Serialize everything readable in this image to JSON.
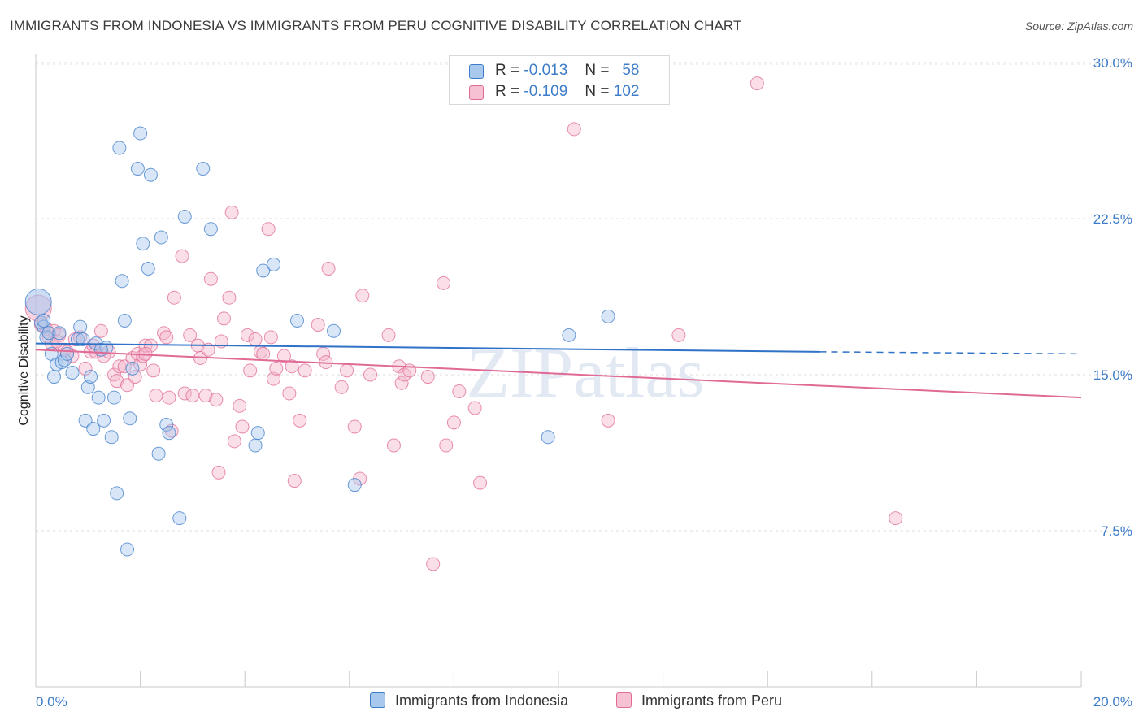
{
  "header": {
    "title": "IMMIGRANTS FROM INDONESIA VS IMMIGRANTS FROM PERU COGNITIVE DISABILITY CORRELATION CHART",
    "source": "Source: ZipAtlas.com"
  },
  "watermark": "ZIPatlas",
  "legend_top": {
    "rows": [
      {
        "r_label": "R =",
        "r_value": "-0.013",
        "n_label": "N =",
        "n_value": "58",
        "color": "#3d7cc9"
      },
      {
        "r_label": "R =",
        "r_value": "-0.109",
        "n_label": "N =",
        "n_value": "102",
        "color": "#e06a95"
      }
    ]
  },
  "legend_bottom": {
    "items": [
      {
        "label": "Immigrants from Indonesia"
      },
      {
        "label": "Immigrants from Peru"
      }
    ]
  },
  "chart_data": {
    "type": "scatter",
    "title": "IMMIGRANTS FROM INDONESIA VS IMMIGRANTS FROM PERU COGNITIVE DISABILITY CORRELATION CHART",
    "xlabel": "",
    "ylabel": "Cognitive Disability",
    "xlim": [
      0,
      20
    ],
    "ylim": [
      0,
      31
    ],
    "x_tick_labels": [
      {
        "value": 0,
        "label": "0.0%"
      },
      {
        "value": 20,
        "label": "20.0%"
      }
    ],
    "y_tick_labels": [
      {
        "value": 7.5,
        "label": "7.5%"
      },
      {
        "value": 15,
        "label": "15.0%"
      },
      {
        "value": 22.5,
        "label": "22.5%"
      },
      {
        "value": 30,
        "label": "30.0%"
      }
    ],
    "grid": "horizontal dashed",
    "legend_position": "bottom",
    "series": [
      {
        "name": "Immigrants from Indonesia",
        "color": "#3d7cc9",
        "fill": "#a9c8ee",
        "trend": {
          "x_start": 0,
          "y_start": 16.5,
          "x_end": 15,
          "y_end": 16.1,
          "x_dash_end": 20,
          "y_dash_end": 16.0
        },
        "points": [
          [
            0.05,
            18.5
          ],
          [
            0.1,
            17.5
          ],
          [
            0.15,
            17.3
          ],
          [
            0.2,
            16.8
          ],
          [
            0.25,
            17.0
          ],
          [
            0.3,
            16.0
          ],
          [
            0.35,
            14.9
          ],
          [
            0.4,
            15.5
          ],
          [
            0.45,
            17.0
          ],
          [
            0.5,
            15.6
          ],
          [
            0.55,
            15.7
          ],
          [
            0.7,
            15.1
          ],
          [
            0.8,
            16.7
          ],
          [
            0.85,
            17.3
          ],
          [
            0.9,
            16.7
          ],
          [
            0.95,
            12.8
          ],
          [
            1.0,
            14.4
          ],
          [
            1.05,
            14.9
          ],
          [
            1.1,
            12.4
          ],
          [
            1.15,
            16.5
          ],
          [
            1.2,
            13.9
          ],
          [
            1.3,
            12.8
          ],
          [
            1.35,
            16.3
          ],
          [
            1.45,
            12.0
          ],
          [
            1.5,
            13.9
          ],
          [
            1.55,
            9.3
          ],
          [
            1.6,
            25.9
          ],
          [
            1.65,
            19.5
          ],
          [
            1.7,
            17.6
          ],
          [
            1.75,
            6.6
          ],
          [
            1.8,
            12.9
          ],
          [
            1.85,
            15.3
          ],
          [
            1.95,
            24.9
          ],
          [
            2.0,
            26.6
          ],
          [
            2.05,
            21.3
          ],
          [
            2.15,
            20.1
          ],
          [
            2.2,
            24.6
          ],
          [
            2.35,
            11.2
          ],
          [
            2.4,
            21.6
          ],
          [
            2.5,
            12.6
          ],
          [
            2.55,
            12.2
          ],
          [
            2.75,
            8.1
          ],
          [
            2.85,
            22.6
          ],
          [
            3.2,
            24.9
          ],
          [
            3.35,
            22.0
          ],
          [
            4.2,
            11.6
          ],
          [
            4.25,
            12.2
          ],
          [
            4.35,
            20.0
          ],
          [
            4.55,
            20.3
          ],
          [
            5.0,
            17.6
          ],
          [
            5.7,
            17.1
          ],
          [
            6.1,
            9.7
          ],
          [
            9.8,
            12.0
          ],
          [
            10.2,
            16.9
          ],
          [
            10.95,
            17.8
          ],
          [
            0.6,
            16.0
          ],
          [
            1.25,
            16.2
          ],
          [
            0.15,
            17.6
          ]
        ]
      },
      {
        "name": "Immigrants from Peru",
        "color": "#e06a95",
        "fill": "#f5b7cb",
        "trend": {
          "x_start": 0,
          "y_start": 16.2,
          "x_end": 20,
          "y_end": 13.9
        },
        "points": [
          [
            0.05,
            18.2
          ],
          [
            0.1,
            17.4
          ],
          [
            0.2,
            17.2
          ],
          [
            0.25,
            16.8
          ],
          [
            0.3,
            16.5
          ],
          [
            0.35,
            17.1
          ],
          [
            0.45,
            16.9
          ],
          [
            0.55,
            16.2
          ],
          [
            0.6,
            16.1
          ],
          [
            0.7,
            15.9
          ],
          [
            0.75,
            16.7
          ],
          [
            0.85,
            16.8
          ],
          [
            0.95,
            15.3
          ],
          [
            1.05,
            16.1
          ],
          [
            1.15,
            16.1
          ],
          [
            1.25,
            17.1
          ],
          [
            1.3,
            15.9
          ],
          [
            1.4,
            16.1
          ],
          [
            1.5,
            15.0
          ],
          [
            1.55,
            14.7
          ],
          [
            1.6,
            15.4
          ],
          [
            1.7,
            15.4
          ],
          [
            1.75,
            14.5
          ],
          [
            1.85,
            15.8
          ],
          [
            1.9,
            14.9
          ],
          [
            1.95,
            16.0
          ],
          [
            2.0,
            15.5
          ],
          [
            2.05,
            15.9
          ],
          [
            2.1,
            16.4
          ],
          [
            2.2,
            16.4
          ],
          [
            2.25,
            15.2
          ],
          [
            2.3,
            14.0
          ],
          [
            2.45,
            17.0
          ],
          [
            2.5,
            16.8
          ],
          [
            2.55,
            13.9
          ],
          [
            2.6,
            12.3
          ],
          [
            2.65,
            18.7
          ],
          [
            2.8,
            20.7
          ],
          [
            2.85,
            14.1
          ],
          [
            2.95,
            16.9
          ],
          [
            3.0,
            14.0
          ],
          [
            3.1,
            16.4
          ],
          [
            3.15,
            15.8
          ],
          [
            3.25,
            14.0
          ],
          [
            3.3,
            16.2
          ],
          [
            3.35,
            19.6
          ],
          [
            3.45,
            13.8
          ],
          [
            3.5,
            10.3
          ],
          [
            3.55,
            16.6
          ],
          [
            3.6,
            17.7
          ],
          [
            3.7,
            18.7
          ],
          [
            3.75,
            22.8
          ],
          [
            3.8,
            11.8
          ],
          [
            3.9,
            13.5
          ],
          [
            3.95,
            12.5
          ],
          [
            4.05,
            16.9
          ],
          [
            4.1,
            15.2
          ],
          [
            4.2,
            16.7
          ],
          [
            4.3,
            16.1
          ],
          [
            4.35,
            16.0
          ],
          [
            4.45,
            22.0
          ],
          [
            4.5,
            16.8
          ],
          [
            4.55,
            14.8
          ],
          [
            4.6,
            15.3
          ],
          [
            4.75,
            15.9
          ],
          [
            4.85,
            14.1
          ],
          [
            4.9,
            15.4
          ],
          [
            4.95,
            9.9
          ],
          [
            5.05,
            12.8
          ],
          [
            5.15,
            15.2
          ],
          [
            5.4,
            17.4
          ],
          [
            5.5,
            16.0
          ],
          [
            5.55,
            15.6
          ],
          [
            5.6,
            20.1
          ],
          [
            5.85,
            14.4
          ],
          [
            5.95,
            15.2
          ],
          [
            6.1,
            12.5
          ],
          [
            6.2,
            10.0
          ],
          [
            6.25,
            18.8
          ],
          [
            6.4,
            15.0
          ],
          [
            6.75,
            16.9
          ],
          [
            6.85,
            11.6
          ],
          [
            6.95,
            15.4
          ],
          [
            7.0,
            14.6
          ],
          [
            7.05,
            15.0
          ],
          [
            7.15,
            15.2
          ],
          [
            7.5,
            14.9
          ],
          [
            7.6,
            5.9
          ],
          [
            7.8,
            19.4
          ],
          [
            7.85,
            11.6
          ],
          [
            8.0,
            12.7
          ],
          [
            8.1,
            14.2
          ],
          [
            8.4,
            13.4
          ],
          [
            8.5,
            9.8
          ],
          [
            10.3,
            26.8
          ],
          [
            10.95,
            12.8
          ],
          [
            12.3,
            16.9
          ],
          [
            13.8,
            29.0
          ],
          [
            16.45,
            8.1
          ],
          [
            2.1,
            16.0
          ],
          [
            1.1,
            16.4
          ],
          [
            0.4,
            16.6
          ]
        ]
      }
    ]
  }
}
